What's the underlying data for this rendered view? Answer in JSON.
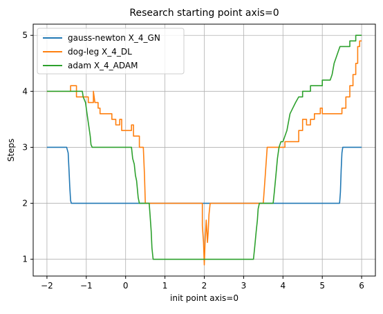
{
  "chart_data": {
    "type": "line",
    "title": "Research starting point axis=0",
    "xlabel": "init point axis=0",
    "ylabel": "Steps",
    "xlim": [
      -2.35,
      6.35
    ],
    "ylim": [
      0.7,
      5.2
    ],
    "xticks": [
      -2,
      -1,
      0,
      1,
      2,
      3,
      4,
      5,
      6
    ],
    "xtick_labels": [
      "−2",
      "−1",
      "0",
      "1",
      "2",
      "3",
      "4",
      "5",
      "6"
    ],
    "yticks": [
      1,
      2,
      3,
      4,
      5
    ],
    "ytick_labels": [
      "1",
      "2",
      "3",
      "4",
      "5"
    ],
    "grid": true,
    "legend_position": "upper-left",
    "series": [
      {
        "name": "gauss-newton X_4_GN",
        "color": "#1f77b4",
        "points": [
          [
            -2.0,
            3.0
          ],
          [
            -1.5,
            3.0
          ],
          [
            -1.46,
            2.9
          ],
          [
            -1.44,
            2.6
          ],
          [
            -1.42,
            2.3
          ],
          [
            -1.4,
            2.05
          ],
          [
            -1.38,
            2.0
          ],
          [
            5.44,
            2.0
          ],
          [
            5.46,
            2.2
          ],
          [
            5.48,
            2.6
          ],
          [
            5.5,
            2.9
          ],
          [
            5.52,
            3.0
          ],
          [
            6.0,
            3.0
          ]
        ]
      },
      {
        "name": "dog-leg X_4_DL",
        "color": "#ff7f0e",
        "points": [
          [
            -2.0,
            4.0
          ],
          [
            -1.4,
            4.0
          ],
          [
            -1.4,
            4.1
          ],
          [
            -1.25,
            4.1
          ],
          [
            -1.25,
            3.9
          ],
          [
            -0.95,
            3.9
          ],
          [
            -0.95,
            3.8
          ],
          [
            -0.82,
            3.8
          ],
          [
            -0.82,
            4.0
          ],
          [
            -0.8,
            3.9
          ],
          [
            -0.78,
            3.8
          ],
          [
            -0.7,
            3.8
          ],
          [
            -0.7,
            3.7
          ],
          [
            -0.65,
            3.7
          ],
          [
            -0.65,
            3.6
          ],
          [
            -0.35,
            3.6
          ],
          [
            -0.35,
            3.5
          ],
          [
            -0.25,
            3.5
          ],
          [
            -0.25,
            3.4
          ],
          [
            -0.15,
            3.4
          ],
          [
            -0.15,
            3.5
          ],
          [
            -0.1,
            3.5
          ],
          [
            -0.1,
            3.3
          ],
          [
            0.15,
            3.3
          ],
          [
            0.15,
            3.4
          ],
          [
            0.2,
            3.4
          ],
          [
            0.2,
            3.2
          ],
          [
            0.35,
            3.2
          ],
          [
            0.35,
            3.0
          ],
          [
            0.45,
            3.0
          ],
          [
            0.48,
            2.5
          ],
          [
            0.5,
            2.0
          ],
          [
            1.95,
            2.0
          ],
          [
            1.95,
            1.6
          ],
          [
            1.98,
            1.3
          ],
          [
            2.0,
            0.9
          ],
          [
            2.02,
            1.3
          ],
          [
            2.05,
            1.7
          ],
          [
            2.08,
            1.3
          ],
          [
            2.1,
            1.5
          ],
          [
            2.12,
            1.8
          ],
          [
            2.15,
            2.0
          ],
          [
            3.5,
            2.0
          ],
          [
            3.55,
            2.5
          ],
          [
            3.6,
            3.0
          ],
          [
            4.05,
            3.0
          ],
          [
            4.05,
            3.1
          ],
          [
            4.4,
            3.1
          ],
          [
            4.4,
            3.3
          ],
          [
            4.5,
            3.3
          ],
          [
            4.5,
            3.5
          ],
          [
            4.6,
            3.5
          ],
          [
            4.6,
            3.4
          ],
          [
            4.7,
            3.4
          ],
          [
            4.7,
            3.5
          ],
          [
            4.8,
            3.5
          ],
          [
            4.8,
            3.6
          ],
          [
            4.95,
            3.6
          ],
          [
            4.95,
            3.7
          ],
          [
            5.0,
            3.7
          ],
          [
            5.0,
            3.6
          ],
          [
            5.5,
            3.6
          ],
          [
            5.5,
            3.7
          ],
          [
            5.6,
            3.7
          ],
          [
            5.6,
            3.9
          ],
          [
            5.7,
            3.9
          ],
          [
            5.7,
            4.1
          ],
          [
            5.78,
            4.1
          ],
          [
            5.78,
            4.3
          ],
          [
            5.85,
            4.3
          ],
          [
            5.85,
            4.5
          ],
          [
            5.9,
            4.5
          ],
          [
            5.9,
            4.8
          ],
          [
            5.95,
            4.8
          ],
          [
            5.95,
            4.9
          ],
          [
            6.0,
            4.9
          ]
        ]
      },
      {
        "name": "adam X_4_ADAM",
        "color": "#2ca02c",
        "points": [
          [
            -2.0,
            4.0
          ],
          [
            -1.1,
            4.0
          ],
          [
            -1.08,
            3.9
          ],
          [
            -1.02,
            3.8
          ],
          [
            -0.98,
            3.6
          ],
          [
            -0.94,
            3.4
          ],
          [
            -0.9,
            3.2
          ],
          [
            -0.88,
            3.05
          ],
          [
            -0.85,
            3.0
          ],
          [
            0.15,
            3.0
          ],
          [
            0.18,
            2.8
          ],
          [
            0.22,
            2.7
          ],
          [
            0.25,
            2.5
          ],
          [
            0.28,
            2.4
          ],
          [
            0.32,
            2.1
          ],
          [
            0.35,
            2.0
          ],
          [
            0.6,
            2.0
          ],
          [
            0.62,
            1.8
          ],
          [
            0.65,
            1.5
          ],
          [
            0.67,
            1.2
          ],
          [
            0.7,
            1.0
          ],
          [
            3.25,
            1.0
          ],
          [
            3.28,
            1.2
          ],
          [
            3.32,
            1.5
          ],
          [
            3.35,
            1.7
          ],
          [
            3.37,
            1.9
          ],
          [
            3.4,
            2.0
          ],
          [
            3.75,
            2.0
          ],
          [
            3.78,
            2.2
          ],
          [
            3.82,
            2.5
          ],
          [
            3.86,
            2.8
          ],
          [
            3.9,
            3.0
          ],
          [
            3.95,
            3.1
          ],
          [
            4.0,
            3.1
          ],
          [
            4.05,
            3.2
          ],
          [
            4.1,
            3.3
          ],
          [
            4.18,
            3.6
          ],
          [
            4.25,
            3.7
          ],
          [
            4.32,
            3.8
          ],
          [
            4.4,
            3.9
          ],
          [
            4.5,
            3.9
          ],
          [
            4.5,
            4.0
          ],
          [
            4.7,
            4.0
          ],
          [
            4.7,
            4.1
          ],
          [
            5.0,
            4.1
          ],
          [
            5.0,
            4.2
          ],
          [
            5.2,
            4.2
          ],
          [
            5.25,
            4.3
          ],
          [
            5.3,
            4.5
          ],
          [
            5.35,
            4.6
          ],
          [
            5.4,
            4.7
          ],
          [
            5.45,
            4.8
          ],
          [
            5.7,
            4.8
          ],
          [
            5.7,
            4.9
          ],
          [
            5.85,
            4.9
          ],
          [
            5.85,
            5.0
          ],
          [
            6.0,
            5.0
          ]
        ]
      }
    ]
  }
}
